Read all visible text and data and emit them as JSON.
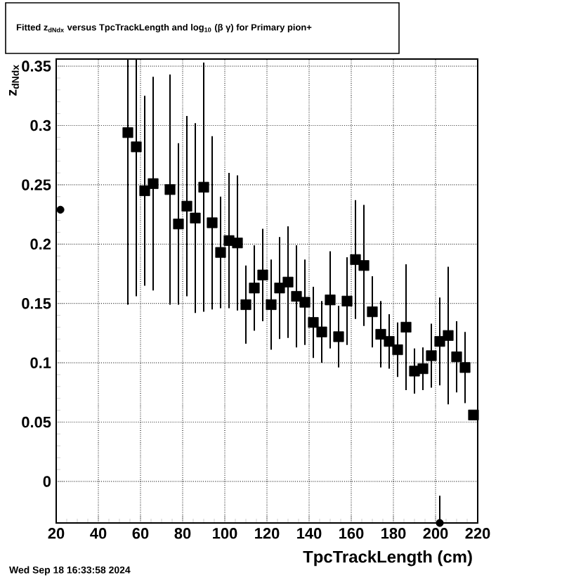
{
  "chart_data": {
    "type": "scatter",
    "title": "Fitted z$_{dNdx}$ versus TpcTrackLength and log$_{10}$ (β γ) for Primary pion+",
    "xlabel": "TpcTrackLength (cm)",
    "ylabel": "z$_{dNdx}$",
    "annotations": [
      "Wed Sep 18 16:33:58 2024"
    ],
    "xlim": [
      20,
      220
    ],
    "ylim": [
      -0.035,
      0.356
    ],
    "xticks": [
      20,
      40,
      60,
      80,
      100,
      120,
      140,
      160,
      180,
      200,
      220
    ],
    "yticks": [
      0,
      0.05,
      0.1,
      0.15,
      0.2,
      0.25,
      0.3,
      0.35
    ],
    "grid": true,
    "series": [
      {
        "color": "#000000",
        "marker": "square",
        "x": [
          54,
          58,
          62,
          66,
          74,
          78,
          82,
          86,
          90,
          94,
          98,
          102,
          106,
          110,
          114,
          118,
          122,
          126,
          130,
          134,
          138,
          142,
          146,
          150,
          154,
          158,
          162,
          166,
          170,
          174,
          178,
          182,
          186,
          190,
          194,
          198,
          202,
          206,
          210,
          214,
          218
        ],
        "values": [
          0.294,
          0.282,
          0.245,
          0.251,
          0.246,
          0.217,
          0.232,
          0.222,
          0.248,
          0.218,
          0.193,
          0.203,
          0.201,
          0.149,
          0.163,
          0.174,
          0.149,
          0.163,
          0.168,
          0.156,
          0.151,
          0.134,
          0.126,
          0.153,
          0.122,
          0.152,
          0.187,
          0.182,
          0.143,
          0.124,
          0.118,
          0.111,
          0.13,
          0.093,
          0.095,
          0.106,
          0.118,
          0.123,
          0.105,
          0.096,
          0.056
        ],
        "errors": [
          [
            0.149,
            0.356
          ],
          [
            0.156,
            0.356
          ],
          0.08,
          0.09,
          0.097,
          0.068,
          0.076,
          0.08,
          0.105,
          0.073,
          0.047,
          0.057,
          0.057,
          0.033,
          0.036,
          0.039,
          0.038,
          0.043,
          0.047,
          0.043,
          0.036,
          0.03,
          0.026,
          0.041,
          0.026,
          0.037,
          0.05,
          0.051,
          0.03,
          0.028,
          0.023,
          0.023,
          0.053,
          0.019,
          0.018,
          0.027,
          0.037,
          0.058,
          0.03,
          0.03,
          null
        ]
      },
      {
        "color": "#000000",
        "marker": "circle",
        "x": [
          22,
          202
        ],
        "values": [
          0.229,
          -0.035
        ],
        "errors": [
          null,
          [
            -0.035,
            -0.012
          ]
        ]
      }
    ]
  }
}
